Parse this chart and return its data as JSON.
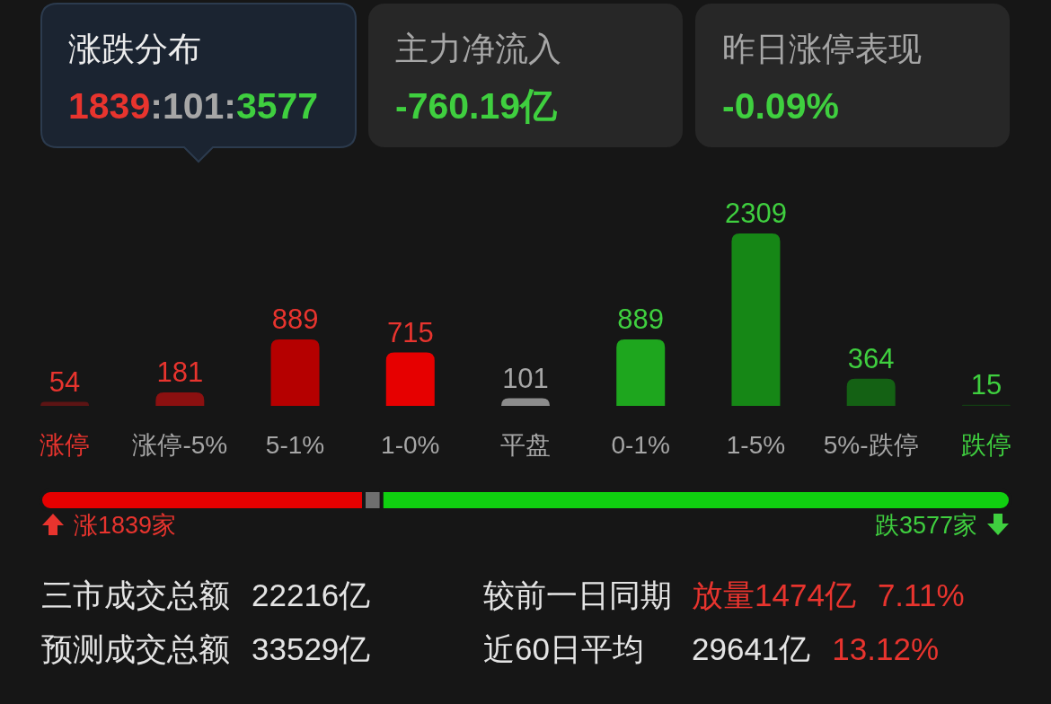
{
  "chart_data": [
    {
      "type": "bar",
      "title": "涨跌分布",
      "subtitle": "1839:101:3577",
      "annotations": [
        "主力净流入",
        "-760.19亿",
        "昨日涨停表现",
        "-0.09%"
      ],
      "categories": [
        "涨停",
        "涨停-5%",
        "5-1%",
        "1-0%",
        "平盘",
        "0-1%",
        "1-5%",
        "5%-跌停",
        "跌停"
      ],
      "values": [
        54,
        181,
        889,
        715,
        101,
        889,
        2309,
        364,
        15
      ],
      "colors": [
        "#5c1414",
        "#8b1010",
        "#b50000",
        "#e60000",
        "#8c8c8c",
        "#1ea61e",
        "#168716",
        "#146114",
        "#133d13"
      ],
      "data_labels": true
    },
    {
      "type": "bar",
      "orientation": "horizontal",
      "stacked": true,
      "categories": [
        null
      ],
      "series": [
        {
          "color": "#e60000",
          "values": [
            1839
          ],
          "value_labels": [
            "涨1839家"
          ]
        },
        {
          "color": "#6f6f6f",
          "values": [
            101
          ]
        },
        {
          "color": "#10d010",
          "values": [
            3577
          ],
          "value_labels": [
            "跌3577家"
          ]
        }
      ]
    },
    {
      "type": "other",
      "annotations": [
        "三市成交总额",
        "22216亿",
        "较前一日同期",
        "放量1474亿",
        "7.11%",
        "预测成交总额",
        "33529亿",
        "近60日平均",
        "29641亿",
        "13.12%"
      ]
    }
  ]
}
